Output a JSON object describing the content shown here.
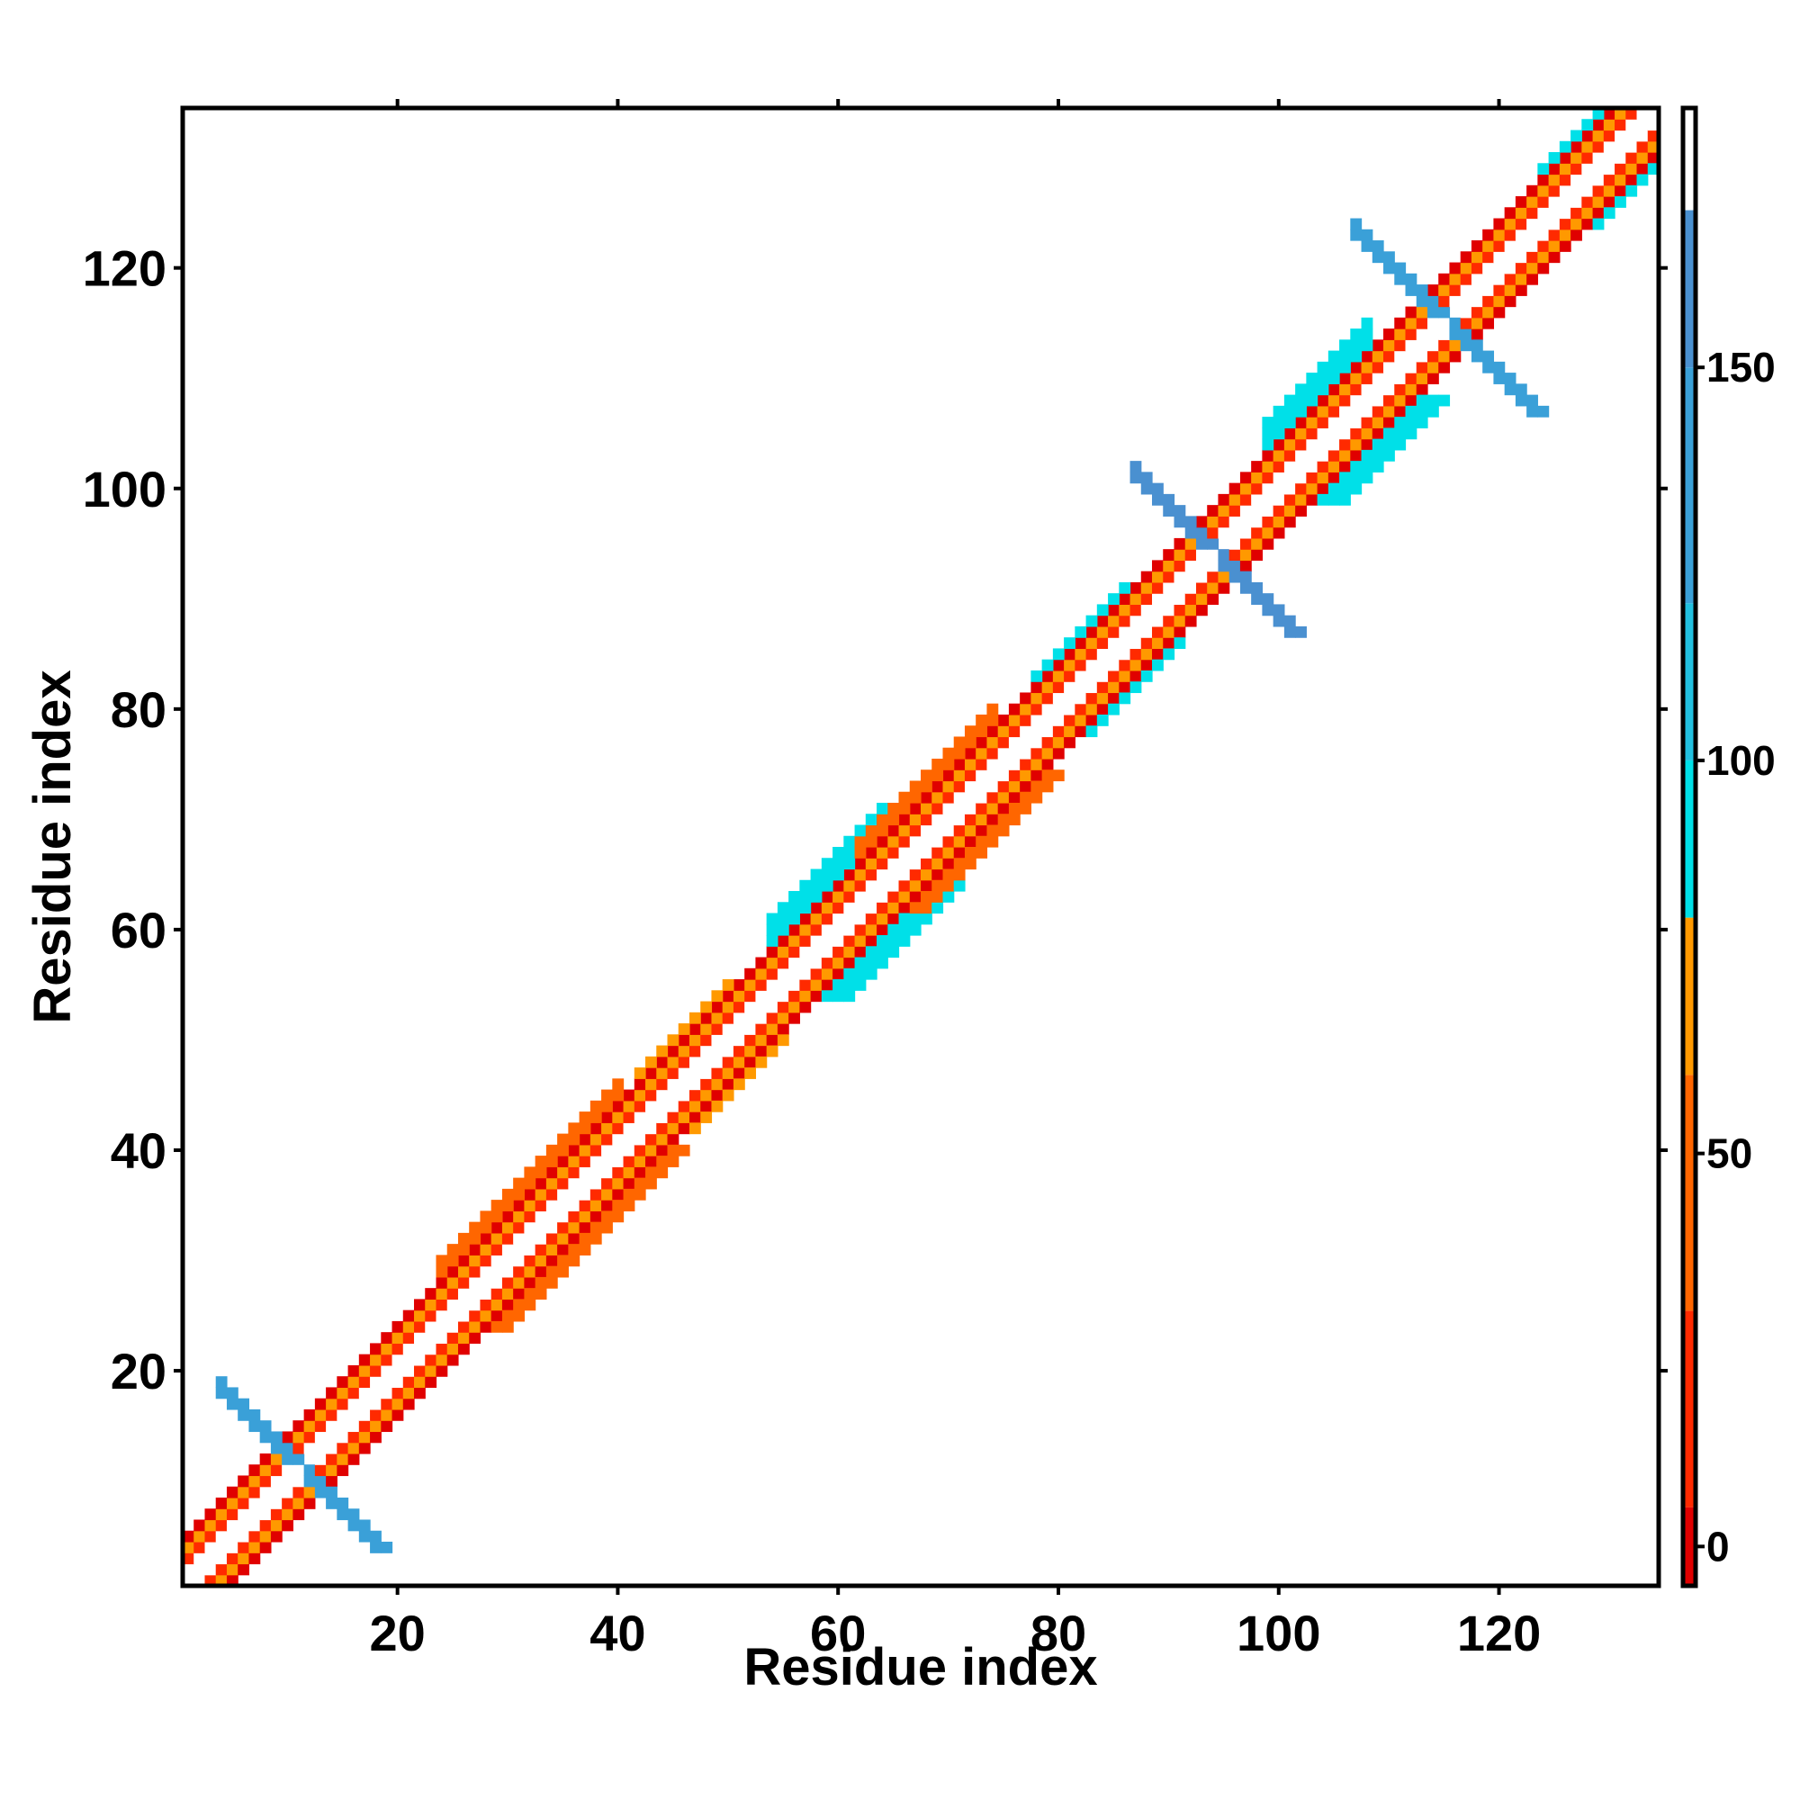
{
  "chart_data": {
    "type": "heatmap",
    "title": "",
    "xlabel": "Residue index",
    "ylabel": "Residue index",
    "xlim": [
      1,
      134
    ],
    "ylim": [
      1,
      134
    ],
    "x_ticks": [
      20,
      40,
      60,
      80,
      100,
      120
    ],
    "y_ticks": [
      20,
      40,
      60,
      80,
      100,
      120
    ],
    "grid": false,
    "legend": "none",
    "colorbar": {
      "placement": "right",
      "range": [
        -5,
        183
      ],
      "ticks": [
        0,
        50,
        100,
        150
      ],
      "segments": [
        {
          "from": -5,
          "to": 5,
          "color": "#e00000"
        },
        {
          "from": 5,
          "to": 30,
          "color": "#ff2a00"
        },
        {
          "from": 30,
          "to": 60,
          "color": "#ff6600"
        },
        {
          "from": 60,
          "to": 80,
          "color": "#ff9900"
        },
        {
          "from": 80,
          "to": 100,
          "color": "#00e0e8"
        },
        {
          "from": 100,
          "to": 120,
          "color": "#22c0e0"
        },
        {
          "from": 120,
          "to": 150,
          "color": "#3aa0d8"
        },
        {
          "from": 150,
          "to": 170,
          "color": "#4a90d0"
        },
        {
          "from": 170,
          "to": 183,
          "color": "#ffffff"
        }
      ]
    },
    "series": [
      {
        "kind": "diagonal-band",
        "from": 1,
        "to": 134,
        "offset_values": [
          {
            "offset": 1,
            "value": 180
          },
          {
            "offset": 2,
            "value": 15
          },
          {
            "offset": 3,
            "value": 65
          },
          {
            "offset": 4,
            "value": 0
          }
        ]
      },
      {
        "kind": "widened-band",
        "regions": [
          {
            "from": 24,
            "to": 40,
            "extra_offsets": [
              5,
              6
            ],
            "value": 45
          },
          {
            "from": 42,
            "to": 50,
            "extra_offsets": [
              5
            ],
            "value": 70
          },
          {
            "from": 54,
            "to": 64,
            "extra_offsets": [
              5,
              6,
              7
            ],
            "value": 95
          },
          {
            "from": 62,
            "to": 74,
            "extra_offsets": [
              5,
              6
            ],
            "value": 50
          },
          {
            "from": 78,
            "to": 86,
            "extra_offsets": [
              5
            ],
            "value": 90
          },
          {
            "from": 99,
            "to": 108,
            "extra_offsets": [
              5,
              6,
              7
            ],
            "value": 95
          },
          {
            "from": 124,
            "to": 132,
            "extra_offsets": [
              5
            ],
            "value": 90
          }
        ]
      },
      {
        "kind": "antidiagonal-cross",
        "crosses": [
          {
            "center": 11,
            "half_length": 7,
            "value": 130
          },
          {
            "center": 94,
            "half_length": 7,
            "value": 160
          },
          {
            "center": 115,
            "half_length": 8,
            "value": 140
          }
        ]
      }
    ]
  }
}
